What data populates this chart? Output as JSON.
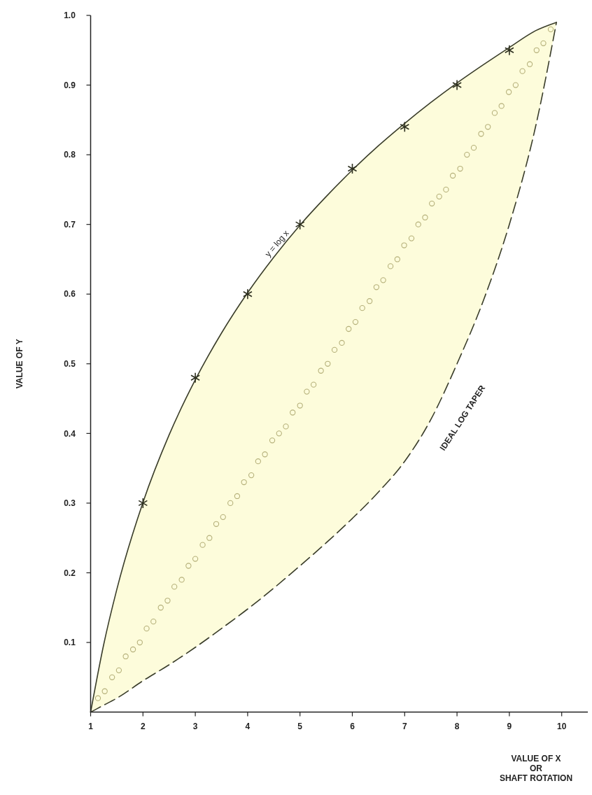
{
  "chart_data": {
    "type": "line",
    "xlabel": "VALUE OF X\nOR\nSHAFT ROTATION",
    "ylabel": "VALUE OF Y",
    "xlim": [
      1,
      10.5
    ],
    "ylim": [
      0,
      1.0
    ],
    "xticks": [
      1,
      2,
      3,
      4,
      5,
      6,
      7,
      8,
      9,
      10
    ],
    "yticks": [
      0.1,
      0.2,
      0.3,
      0.4,
      0.5,
      0.6,
      0.7,
      0.8,
      0.9,
      {
        "value": 1,
        "label": "1.0"
      }
    ],
    "grid": false,
    "annotations": [
      {
        "text": "y = log x",
        "x": 4.6,
        "y": 0.67
      },
      "IDEAL LOG TAPER"
    ],
    "series": [
      {
        "color": "#3a3d2a",
        "line_style": "solid",
        "x": [
          1,
          1.25,
          1.5,
          2,
          2.5,
          3,
          3.5,
          4,
          4.5,
          5,
          5.5,
          6,
          6.5,
          7,
          7.5,
          8,
          8.5,
          9,
          9.5,
          9.9
        ],
        "values": [
          0,
          0.097,
          0.176,
          0.301,
          0.398,
          0.477,
          0.544,
          0.602,
          0.653,
          0.699,
          0.74,
          0.778,
          0.813,
          0.845,
          0.875,
          0.903,
          0.929,
          0.954,
          0.978,
          0.99
        ],
        "upper": [
          0,
          0.097,
          0.176,
          0.301,
          0.398,
          0.477,
          0.544,
          0.602,
          0.653,
          0.699,
          0.74,
          0.778,
          0.813,
          0.845,
          0.875,
          0.903,
          0.929,
          0.954,
          0.978,
          0.99
        ],
        "lower": [
          0,
          0.01,
          0.02,
          0.045,
          0.068,
          0.093,
          0.12,
          0.148,
          0.178,
          0.21,
          0.243,
          0.278,
          0.316,
          0.36,
          0.42,
          0.5,
          0.59,
          0.7,
          0.84,
          0.99
        ]
      },
      {
        "color": "#3a3d2a",
        "line_style": "dashed",
        "x": [
          1,
          1.25,
          1.5,
          2,
          2.5,
          3,
          3.5,
          4,
          4.5,
          5,
          5.5,
          6,
          6.5,
          7,
          7.5,
          8,
          8.5,
          9,
          9.5,
          9.9
        ],
        "values": [
          0,
          0.01,
          0.02,
          0.045,
          0.068,
          0.093,
          0.12,
          0.148,
          0.178,
          0.21,
          0.243,
          0.278,
          0.316,
          0.36,
          0.42,
          0.5,
          0.59,
          0.7,
          0.84,
          0.99
        ]
      },
      {
        "type": "scatter",
        "marker": "cross",
        "color": "#2e3020",
        "x": [
          2,
          3,
          4,
          5,
          6,
          7,
          8,
          9
        ],
        "values": [
          0.3,
          0.48,
          0.6,
          0.7,
          0.78,
          0.84,
          0.9,
          0.95
        ]
      },
      {
        "type": "scatter",
        "marker": "circle",
        "color": "#b5b07a",
        "x": [
          1.14,
          1.27,
          1.41,
          1.54,
          1.67,
          1.81,
          1.94,
          2.07,
          2.2,
          2.34,
          2.47,
          2.6,
          2.74,
          2.87,
          3,
          3.14,
          3.27,
          3.4,
          3.53,
          3.67,
          3.8,
          3.93,
          4.07,
          4.2,
          4.33,
          4.47,
          4.6,
          4.73,
          4.86,
          5,
          5.13,
          5.26,
          5.4,
          5.53,
          5.66,
          5.8,
          5.93,
          6.06,
          6.19,
          6.33,
          6.46,
          6.59,
          6.73,
          6.86,
          6.99,
          7.13,
          7.26,
          7.39,
          7.52,
          7.66,
          7.79,
          7.92,
          8.06,
          8.19,
          8.32,
          8.46,
          8.59,
          8.72,
          8.85,
          8.99,
          9.12,
          9.25,
          9.39,
          9.52,
          9.65,
          9.79
        ],
        "values": [
          0.02,
          0.03,
          0.05,
          0.06,
          0.08,
          0.09,
          0.1,
          0.12,
          0.13,
          0.15,
          0.16,
          0.18,
          0.19,
          0.21,
          0.22,
          0.24,
          0.25,
          0.27,
          0.28,
          0.3,
          0.31,
          0.33,
          0.34,
          0.36,
          0.37,
          0.39,
          0.4,
          0.41,
          0.43,
          0.44,
          0.46,
          0.47,
          0.49,
          0.5,
          0.52,
          0.53,
          0.55,
          0.56,
          0.58,
          0.59,
          0.61,
          0.62,
          0.64,
          0.65,
          0.67,
          0.68,
          0.7,
          0.71,
          0.73,
          0.74,
          0.75,
          0.77,
          0.78,
          0.8,
          0.81,
          0.83,
          0.84,
          0.86,
          0.87,
          0.89,
          0.9,
          0.92,
          0.93,
          0.95,
          0.96,
          0.98
        ]
      }
    ]
  }
}
